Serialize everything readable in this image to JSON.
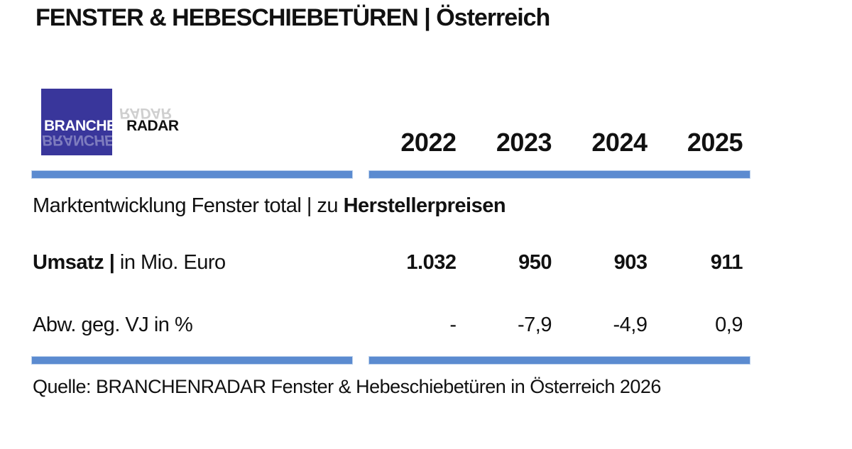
{
  "page": {
    "title": "FENSTER & HEBESCHIEBETÜREN | Österreich"
  },
  "logo": {
    "branchen": "BRANCHEN",
    "radar": "RADAR"
  },
  "table": {
    "years": [
      "2022",
      "2023",
      "2024",
      "2025"
    ],
    "section": {
      "lead": "Marktentwicklung Fenster total | zu ",
      "emphasis": "Herstellerpreisen"
    },
    "rows": [
      {
        "label_strong": "Umsatz | ",
        "label_rest": "in Mio. Euro",
        "values": [
          "1.032",
          "950",
          "903",
          "911"
        ]
      },
      {
        "label_strong": "",
        "label_rest": "Abw. geg. VJ in %",
        "values": [
          "-",
          "-7,9",
          "-4,9",
          "0,9"
        ]
      }
    ]
  },
  "footer": {
    "source": "Quelle: BRANCHENRADAR Fenster & Hebeschiebetüren in Österreich 2026"
  },
  "colors": {
    "bar_blue": "#5B8BD0",
    "logo_blue": "#39369B",
    "text": "#111111"
  },
  "chart_data": {
    "type": "table",
    "title": "FENSTER & HEBESCHIEBETÜREN | Österreich",
    "section_heading": "Marktentwicklung Fenster total | zu Herstellerpreisen",
    "categories": [
      "2022",
      "2023",
      "2024",
      "2025"
    ],
    "series": [
      {
        "name": "Umsatz | in Mio. Euro",
        "values": [
          1032,
          950,
          903,
          911
        ]
      },
      {
        "name": "Abw. geg. VJ in %",
        "values": [
          null,
          -7.9,
          -4.9,
          0.9
        ]
      }
    ],
    "source": "Quelle: BRANCHENRADAR Fenster & Hebeschiebetüren in Österreich 2026"
  }
}
